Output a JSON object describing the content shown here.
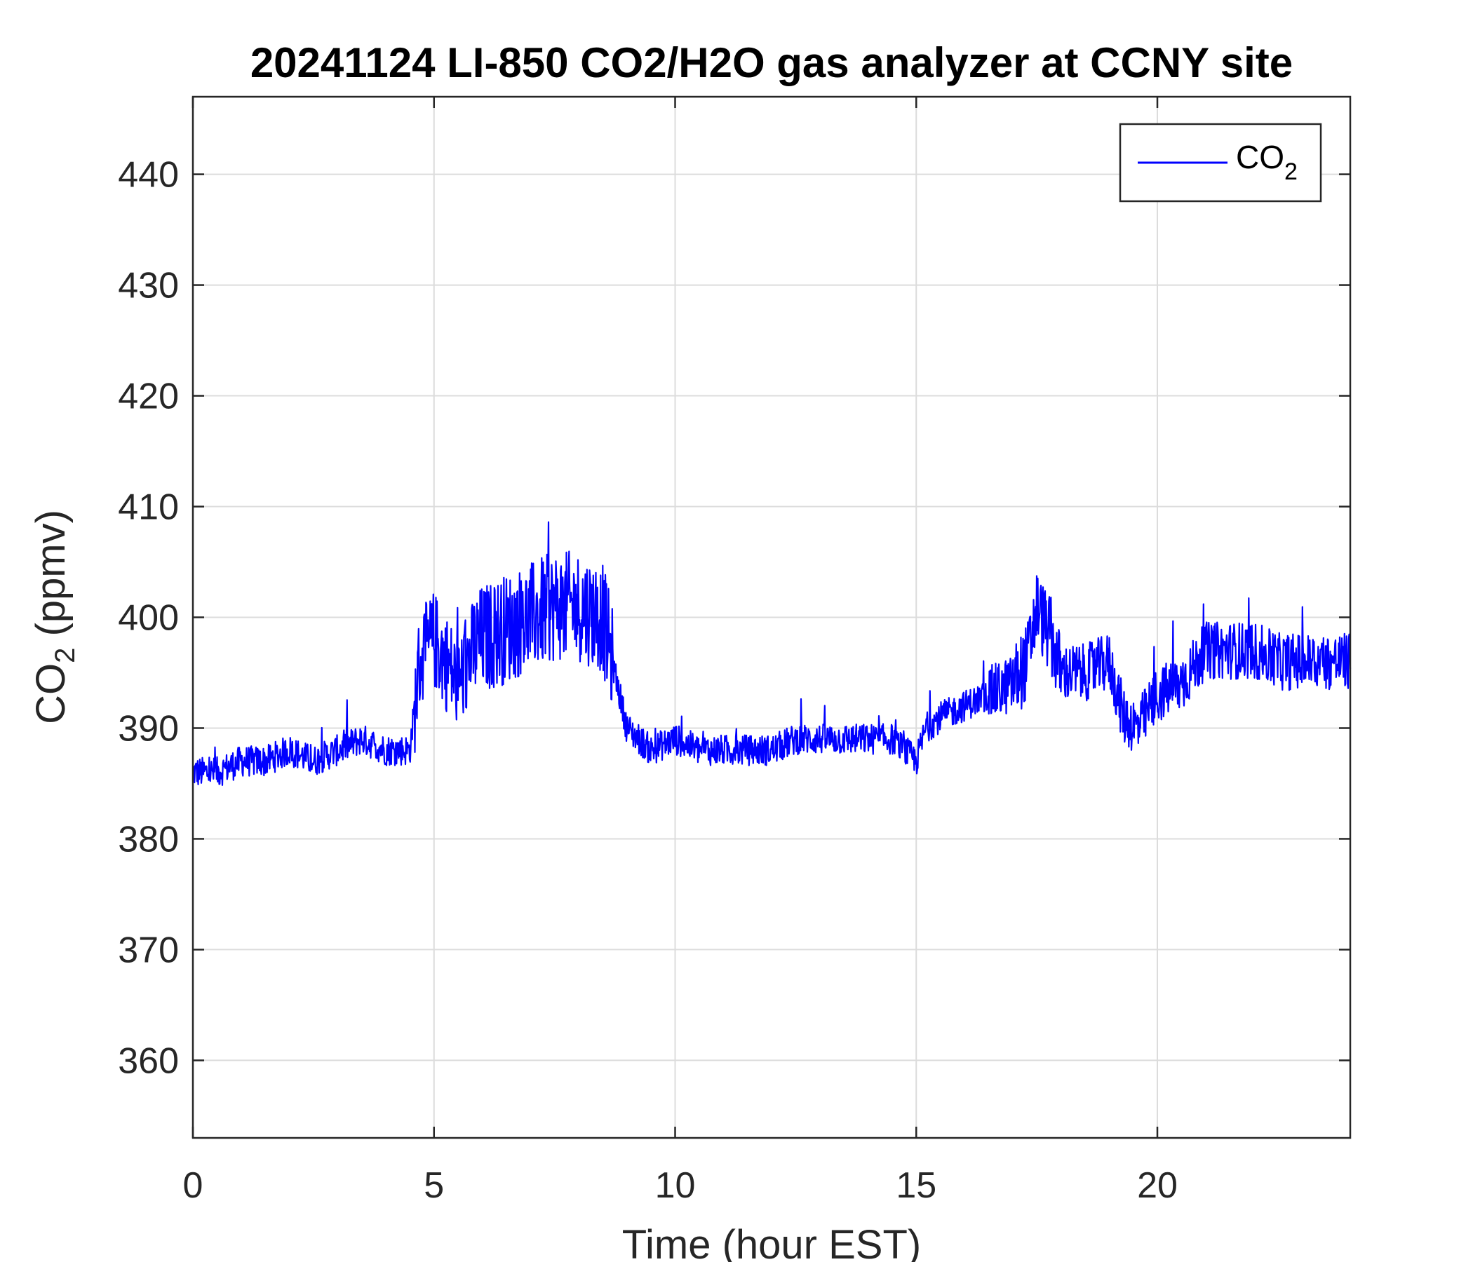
{
  "chart_data": {
    "type": "line",
    "title": "20241124 LI-850 CO2/H2O gas analyzer at CCNY site",
    "xlabel": "Time (hour EST)",
    "ylabel_main": "CO",
    "ylabel_sub": "2",
    "ylabel_tail": " (ppmv)",
    "xlim": [
      0,
      24
    ],
    "ylim": [
      353,
      447
    ],
    "xticks": [
      0,
      5,
      10,
      15,
      20
    ],
    "yticks": [
      360,
      370,
      380,
      390,
      400,
      410,
      420,
      430,
      440
    ],
    "grid": true,
    "legend_placement": "top-right",
    "series": [
      {
        "name_main": "CO",
        "name_sub": "2",
        "color": "#0000ff",
        "x": [
          0,
          0.5,
          1,
          1.5,
          2,
          2.5,
          3,
          3.5,
          4,
          4.5,
          4.7,
          5,
          5.5,
          5.8,
          6,
          6.5,
          7,
          7.5,
          8,
          8.5,
          8.8,
          9,
          9.5,
          10,
          10.5,
          11,
          11.5,
          12,
          12.5,
          13,
          13.5,
          14,
          14.5,
          15,
          15.2,
          15.5,
          16,
          16.5,
          17,
          17.3,
          17.5,
          17.8,
          18,
          18.5,
          19,
          19.3,
          19.6,
          20,
          20.5,
          21,
          21.5,
          22,
          22.5,
          23,
          23.5,
          24
        ],
        "values": [
          386,
          386,
          387,
          387,
          388,
          387,
          388,
          389,
          388,
          388,
          396,
          398,
          394,
          397,
          398,
          399,
          400,
          401,
          401,
          400,
          394,
          390,
          388,
          389,
          388,
          388,
          388,
          388,
          389,
          389,
          389,
          389,
          389,
          387,
          390,
          391,
          392,
          393,
          394,
          396,
          401,
          398,
          395,
          395,
          396,
          391,
          390,
          393,
          394,
          397,
          397,
          397,
          396,
          396,
          396,
          396
        ]
      }
    ]
  }
}
